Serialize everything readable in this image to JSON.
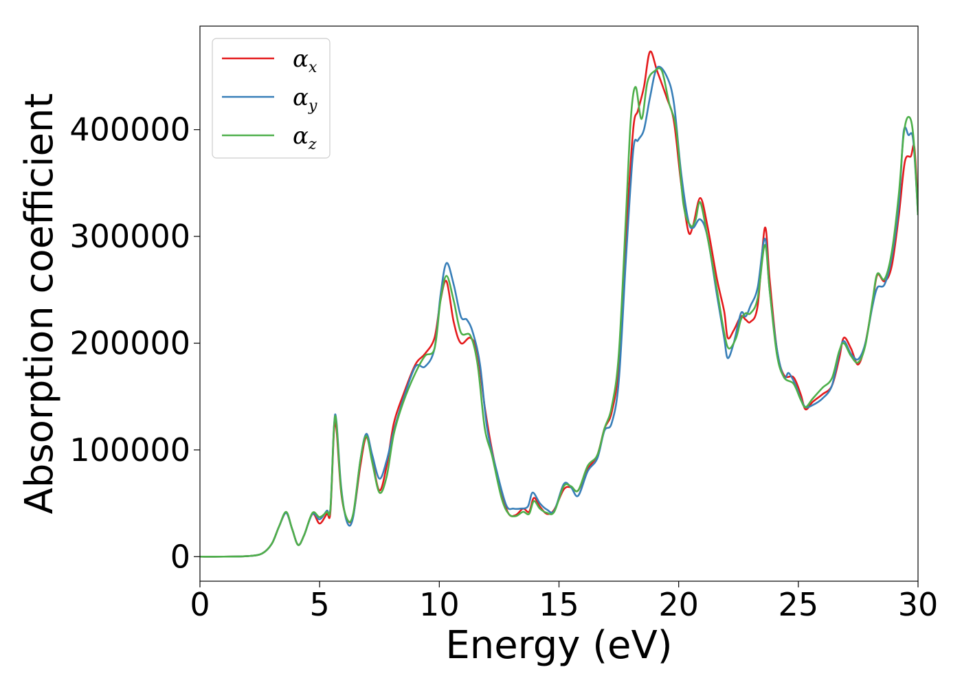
{
  "chart_data": {
    "type": "line",
    "title": "",
    "xlabel": "Energy (eV)",
    "ylabel": "Absorption coefficient",
    "xlim": [
      0,
      30
    ],
    "ylim": [
      -23000,
      497000
    ],
    "xticks": [
      0,
      5,
      10,
      15,
      20,
      25,
      30
    ],
    "yticks": [
      0,
      100000,
      200000,
      300000,
      400000
    ],
    "xtick_labels": [
      "0",
      "5",
      "10",
      "15",
      "20",
      "25",
      "30"
    ],
    "ytick_labels": [
      "0",
      "100000",
      "200000",
      "300000",
      "400000"
    ],
    "grid": false,
    "legend_position": "top-left",
    "series": [
      {
        "name": "αx",
        "symbol": "α",
        "subscript": "x",
        "color": "#e41a1c",
        "points": [
          [
            0,
            0
          ],
          [
            1,
            0
          ],
          [
            2,
            500
          ],
          [
            2.6,
            3000
          ],
          [
            3.0,
            12000
          ],
          [
            3.3,
            28000
          ],
          [
            3.6,
            41000
          ],
          [
            3.85,
            26000
          ],
          [
            4.1,
            11000
          ],
          [
            4.35,
            20000
          ],
          [
            4.7,
            40000
          ],
          [
            5.0,
            31000
          ],
          [
            5.3,
            40000
          ],
          [
            5.45,
            42000
          ],
          [
            5.6,
            118000
          ],
          [
            5.7,
            120000
          ],
          [
            5.9,
            60000
          ],
          [
            6.15,
            35000
          ],
          [
            6.4,
            38000
          ],
          [
            6.7,
            85000
          ],
          [
            6.95,
            112000
          ],
          [
            7.2,
            90000
          ],
          [
            7.5,
            62000
          ],
          [
            7.8,
            85000
          ],
          [
            8.1,
            125000
          ],
          [
            8.5,
            152000
          ],
          [
            9.0,
            180000
          ],
          [
            9.4,
            190000
          ],
          [
            9.8,
            205000
          ],
          [
            10.05,
            240000
          ],
          [
            10.3,
            258000
          ],
          [
            10.6,
            220000
          ],
          [
            10.9,
            200000
          ],
          [
            11.3,
            205000
          ],
          [
            11.6,
            190000
          ],
          [
            11.9,
            140000
          ],
          [
            12.2,
            100000
          ],
          [
            12.6,
            60000
          ],
          [
            12.9,
            40000
          ],
          [
            13.2,
            39000
          ],
          [
            13.5,
            45000
          ],
          [
            13.75,
            42000
          ],
          [
            13.95,
            55000
          ],
          [
            14.2,
            47000
          ],
          [
            14.5,
            40000
          ],
          [
            14.8,
            44000
          ],
          [
            15.2,
            63000
          ],
          [
            15.5,
            65000
          ],
          [
            15.8,
            62000
          ],
          [
            16.2,
            82000
          ],
          [
            16.6,
            95000
          ],
          [
            16.9,
            120000
          ],
          [
            17.2,
            135000
          ],
          [
            17.5,
            180000
          ],
          [
            17.8,
            300000
          ],
          [
            18.1,
            400000
          ],
          [
            18.3,
            418000
          ],
          [
            18.55,
            440000
          ],
          [
            18.8,
            473000
          ],
          [
            19.1,
            455000
          ],
          [
            19.5,
            430000
          ],
          [
            19.8,
            408000
          ],
          [
            20.1,
            350000
          ],
          [
            20.4,
            305000
          ],
          [
            20.6,
            310000
          ],
          [
            20.9,
            336000
          ],
          [
            21.2,
            310000
          ],
          [
            21.6,
            260000
          ],
          [
            21.9,
            230000
          ],
          [
            22.05,
            205000
          ],
          [
            22.3,
            212000
          ],
          [
            22.6,
            225000
          ],
          [
            22.8,
            222000
          ],
          [
            23.0,
            220000
          ],
          [
            23.3,
            235000
          ],
          [
            23.6,
            308000
          ],
          [
            23.8,
            260000
          ],
          [
            24.1,
            195000
          ],
          [
            24.4,
            170000
          ],
          [
            24.8,
            168000
          ],
          [
            25.1,
            152000
          ],
          [
            25.3,
            138000
          ],
          [
            25.6,
            145000
          ],
          [
            26.0,
            152000
          ],
          [
            26.4,
            160000
          ],
          [
            26.7,
            185000
          ],
          [
            26.9,
            205000
          ],
          [
            27.2,
            195000
          ],
          [
            27.5,
            180000
          ],
          [
            27.8,
            200000
          ],
          [
            28.1,
            238000
          ],
          [
            28.3,
            264000
          ],
          [
            28.6,
            258000
          ],
          [
            28.9,
            272000
          ],
          [
            29.2,
            320000
          ],
          [
            29.45,
            370000
          ],
          [
            29.7,
            375000
          ],
          [
            29.85,
            383000
          ],
          [
            30.0,
            325000
          ]
        ]
      },
      {
        "name": "αy",
        "symbol": "α",
        "subscript": "y",
        "color": "#377eb8",
        "points": [
          [
            0,
            0
          ],
          [
            1,
            0
          ],
          [
            2,
            500
          ],
          [
            2.6,
            3000
          ],
          [
            3.0,
            12000
          ],
          [
            3.3,
            28000
          ],
          [
            3.6,
            41000
          ],
          [
            3.85,
            26000
          ],
          [
            4.1,
            11000
          ],
          [
            4.35,
            20000
          ],
          [
            4.7,
            40000
          ],
          [
            5.0,
            35000
          ],
          [
            5.3,
            43000
          ],
          [
            5.45,
            45000
          ],
          [
            5.6,
            122000
          ],
          [
            5.7,
            127000
          ],
          [
            5.9,
            65000
          ],
          [
            6.15,
            32000
          ],
          [
            6.4,
            37000
          ],
          [
            6.7,
            90000
          ],
          [
            6.95,
            115000
          ],
          [
            7.2,
            95000
          ],
          [
            7.5,
            73000
          ],
          [
            7.8,
            90000
          ],
          [
            8.1,
            118000
          ],
          [
            8.5,
            148000
          ],
          [
            9.0,
            178000
          ],
          [
            9.4,
            178000
          ],
          [
            9.8,
            195000
          ],
          [
            10.05,
            245000
          ],
          [
            10.3,
            275000
          ],
          [
            10.6,
            255000
          ],
          [
            10.9,
            225000
          ],
          [
            11.15,
            222000
          ],
          [
            11.4,
            210000
          ],
          [
            11.7,
            180000
          ],
          [
            12.0,
            120000
          ],
          [
            12.4,
            80000
          ],
          [
            12.8,
            48000
          ],
          [
            13.1,
            45000
          ],
          [
            13.4,
            45000
          ],
          [
            13.7,
            47000
          ],
          [
            13.9,
            60000
          ],
          [
            14.2,
            50000
          ],
          [
            14.5,
            44000
          ],
          [
            14.8,
            43000
          ],
          [
            15.2,
            68000
          ],
          [
            15.5,
            65000
          ],
          [
            15.8,
            57000
          ],
          [
            16.2,
            80000
          ],
          [
            16.6,
            92000
          ],
          [
            16.9,
            118000
          ],
          [
            17.2,
            125000
          ],
          [
            17.5,
            165000
          ],
          [
            17.8,
            280000
          ],
          [
            18.1,
            380000
          ],
          [
            18.3,
            390000
          ],
          [
            18.55,
            400000
          ],
          [
            18.8,
            430000
          ],
          [
            19.1,
            458000
          ],
          [
            19.5,
            450000
          ],
          [
            19.8,
            425000
          ],
          [
            20.1,
            360000
          ],
          [
            20.4,
            315000
          ],
          [
            20.6,
            308000
          ],
          [
            20.9,
            316000
          ],
          [
            21.2,
            300000
          ],
          [
            21.6,
            245000
          ],
          [
            21.9,
            205000
          ],
          [
            22.05,
            186000
          ],
          [
            22.3,
            200000
          ],
          [
            22.6,
            228000
          ],
          [
            22.8,
            225000
          ],
          [
            23.0,
            235000
          ],
          [
            23.3,
            252000
          ],
          [
            23.6,
            298000
          ],
          [
            23.8,
            250000
          ],
          [
            24.1,
            195000
          ],
          [
            24.4,
            168000
          ],
          [
            24.6,
            172000
          ],
          [
            24.9,
            160000
          ],
          [
            25.1,
            148000
          ],
          [
            25.3,
            140000
          ],
          [
            25.6,
            142000
          ],
          [
            26.0,
            148000
          ],
          [
            26.4,
            160000
          ],
          [
            26.7,
            190000
          ],
          [
            26.9,
            202000
          ],
          [
            27.2,
            190000
          ],
          [
            27.5,
            185000
          ],
          [
            27.8,
            200000
          ],
          [
            28.1,
            235000
          ],
          [
            28.3,
            252000
          ],
          [
            28.6,
            255000
          ],
          [
            28.9,
            280000
          ],
          [
            29.2,
            330000
          ],
          [
            29.4,
            398000
          ],
          [
            29.6,
            395000
          ],
          [
            29.8,
            390000
          ],
          [
            30.0,
            320000
          ]
        ]
      },
      {
        "name": "αz",
        "symbol": "α",
        "subscript": "z",
        "color": "#4daf4a",
        "points": [
          [
            0,
            0
          ],
          [
            1,
            0
          ],
          [
            2,
            500
          ],
          [
            2.6,
            3000
          ],
          [
            3.0,
            12000
          ],
          [
            3.3,
            28000
          ],
          [
            3.6,
            42000
          ],
          [
            3.85,
            26000
          ],
          [
            4.1,
            11000
          ],
          [
            4.35,
            20000
          ],
          [
            4.7,
            41000
          ],
          [
            5.0,
            37000
          ],
          [
            5.3,
            42000
          ],
          [
            5.45,
            45000
          ],
          [
            5.6,
            121000
          ],
          [
            5.7,
            125000
          ],
          [
            5.9,
            62000
          ],
          [
            6.15,
            35000
          ],
          [
            6.4,
            40000
          ],
          [
            6.7,
            90000
          ],
          [
            6.95,
            113000
          ],
          [
            7.2,
            88000
          ],
          [
            7.5,
            60000
          ],
          [
            7.8,
            75000
          ],
          [
            8.1,
            115000
          ],
          [
            8.5,
            145000
          ],
          [
            9.0,
            172000
          ],
          [
            9.4,
            188000
          ],
          [
            9.8,
            195000
          ],
          [
            10.05,
            240000
          ],
          [
            10.3,
            263000
          ],
          [
            10.6,
            240000
          ],
          [
            10.9,
            210000
          ],
          [
            11.3,
            207000
          ],
          [
            11.6,
            180000
          ],
          [
            11.9,
            120000
          ],
          [
            12.2,
            95000
          ],
          [
            12.6,
            55000
          ],
          [
            12.9,
            40000
          ],
          [
            13.2,
            38000
          ],
          [
            13.5,
            42000
          ],
          [
            13.75,
            40000
          ],
          [
            13.95,
            52000
          ],
          [
            14.2,
            45000
          ],
          [
            14.5,
            41000
          ],
          [
            14.8,
            42000
          ],
          [
            15.2,
            66000
          ],
          [
            15.5,
            66000
          ],
          [
            15.8,
            62000
          ],
          [
            16.2,
            85000
          ],
          [
            16.6,
            95000
          ],
          [
            16.9,
            120000
          ],
          [
            17.2,
            140000
          ],
          [
            17.5,
            190000
          ],
          [
            17.8,
            320000
          ],
          [
            18.0,
            410000
          ],
          [
            18.2,
            440000
          ],
          [
            18.45,
            410000
          ],
          [
            18.7,
            445000
          ],
          [
            19.0,
            455000
          ],
          [
            19.3,
            455000
          ],
          [
            19.6,
            425000
          ],
          [
            19.9,
            400000
          ],
          [
            20.2,
            330000
          ],
          [
            20.5,
            310000
          ],
          [
            20.7,
            315000
          ],
          [
            20.9,
            332000
          ],
          [
            21.2,
            300000
          ],
          [
            21.6,
            250000
          ],
          [
            21.9,
            210000
          ],
          [
            22.1,
            195000
          ],
          [
            22.4,
            205000
          ],
          [
            22.6,
            222000
          ],
          [
            22.8,
            228000
          ],
          [
            23.0,
            228000
          ],
          [
            23.3,
            242000
          ],
          [
            23.6,
            292000
          ],
          [
            23.8,
            250000
          ],
          [
            24.1,
            190000
          ],
          [
            24.4,
            168000
          ],
          [
            24.8,
            162000
          ],
          [
            25.1,
            147000
          ],
          [
            25.3,
            140000
          ],
          [
            25.6,
            148000
          ],
          [
            26.0,
            158000
          ],
          [
            26.4,
            167000
          ],
          [
            26.7,
            192000
          ],
          [
            26.9,
            200000
          ],
          [
            27.2,
            188000
          ],
          [
            27.5,
            182000
          ],
          [
            27.8,
            198000
          ],
          [
            28.1,
            240000
          ],
          [
            28.3,
            265000
          ],
          [
            28.6,
            260000
          ],
          [
            28.9,
            285000
          ],
          [
            29.2,
            340000
          ],
          [
            29.4,
            395000
          ],
          [
            29.6,
            412000
          ],
          [
            29.8,
            395000
          ],
          [
            30.0,
            320000
          ]
        ]
      }
    ]
  }
}
